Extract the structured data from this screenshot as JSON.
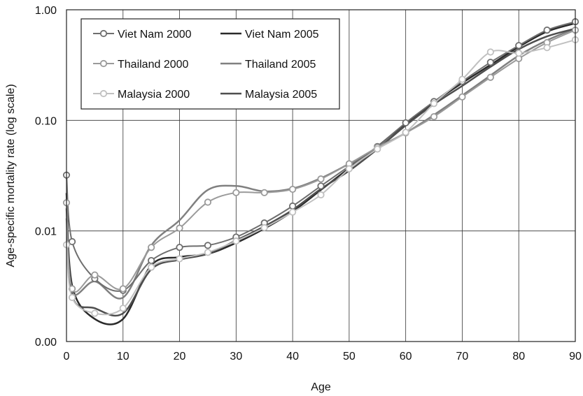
{
  "chart_data": {
    "type": "line",
    "xlabel": "Age",
    "ylabel": "Age-specific mortality rate (log scale)",
    "xlim": [
      0,
      90
    ],
    "x_ticks": [
      0,
      10,
      20,
      30,
      40,
      50,
      60,
      70,
      80,
      90
    ],
    "x_tick_labels": [
      "0",
      "10",
      "20",
      "30",
      "40",
      "50",
      "60",
      "70",
      "80",
      "90"
    ],
    "ylim": [
      0.001,
      1.0
    ],
    "y_scale": "log",
    "y_ticks": [
      0.001,
      0.01,
      0.1,
      1.0
    ],
    "y_tick_labels": [
      "0.00",
      "0.01",
      "0.10",
      "1.00"
    ],
    "grid": true,
    "legend_position": "top-left",
    "x": [
      0,
      1,
      5,
      10,
      15,
      20,
      25,
      30,
      35,
      40,
      45,
      50,
      55,
      60,
      65,
      70,
      75,
      80,
      85,
      90
    ],
    "series": [
      {
        "name": "Viet Nam 2000",
        "color": "#6e6e6e",
        "markers": true,
        "line_width": 2,
        "values": [
          0.032,
          0.008,
          0.0037,
          0.0029,
          0.0054,
          0.0071,
          0.0074,
          0.0088,
          0.0118,
          0.0168,
          0.0255,
          0.0385,
          0.058,
          0.095,
          0.148,
          0.225,
          0.335,
          0.475,
          0.655,
          0.78
        ]
      },
      {
        "name": "Viet Nam 2005",
        "color": "#2a2a2a",
        "markers": false,
        "line_width": 2.5,
        "values": [
          0.022,
          0.0032,
          0.0016,
          0.0016,
          0.0049,
          0.0058,
          0.0062,
          0.0078,
          0.0105,
          0.015,
          0.0235,
          0.037,
          0.058,
          0.094,
          0.146,
          0.218,
          0.318,
          0.462,
          0.635,
          0.755
        ]
      },
      {
        "name": "Thailand 2000",
        "color": "#9a9a9a",
        "markers": true,
        "line_width": 2,
        "values": [
          0.018,
          0.003,
          0.004,
          0.003,
          0.0071,
          0.0106,
          0.0182,
          0.0222,
          0.0222,
          0.0238,
          0.0295,
          0.0405,
          0.057,
          0.077,
          0.108,
          0.163,
          0.245,
          0.362,
          0.505,
          0.655
        ]
      },
      {
        "name": "Thailand 2005",
        "color": "#808080",
        "markers": false,
        "line_width": 2.5,
        "values": [
          0.013,
          0.0028,
          0.0035,
          0.0025,
          0.0074,
          0.0125,
          0.0235,
          0.0255,
          0.0228,
          0.0242,
          0.03,
          0.0405,
          0.056,
          0.077,
          0.112,
          0.168,
          0.255,
          0.385,
          0.53,
          0.675
        ]
      },
      {
        "name": "Malaysia 2000",
        "color": "#c0c0c0",
        "markers": true,
        "line_width": 2,
        "values": [
          0.0075,
          0.0025,
          0.0018,
          0.002,
          0.0047,
          0.0056,
          0.0064,
          0.0081,
          0.0107,
          0.0148,
          0.0212,
          0.0365,
          0.055,
          0.078,
          0.142,
          0.235,
          0.415,
          0.405,
          0.455,
          0.535
        ]
      },
      {
        "name": "Malaysia 2005",
        "color": "#4e4e4e",
        "markers": false,
        "line_width": 2.5,
        "values": [
          0.016,
          0.0026,
          0.002,
          0.0018,
          0.0045,
          0.0055,
          0.0062,
          0.0082,
          0.011,
          0.0155,
          0.024,
          0.035,
          0.055,
          0.09,
          0.14,
          0.205,
          0.305,
          0.44,
          0.575,
          0.675
        ]
      }
    ]
  }
}
